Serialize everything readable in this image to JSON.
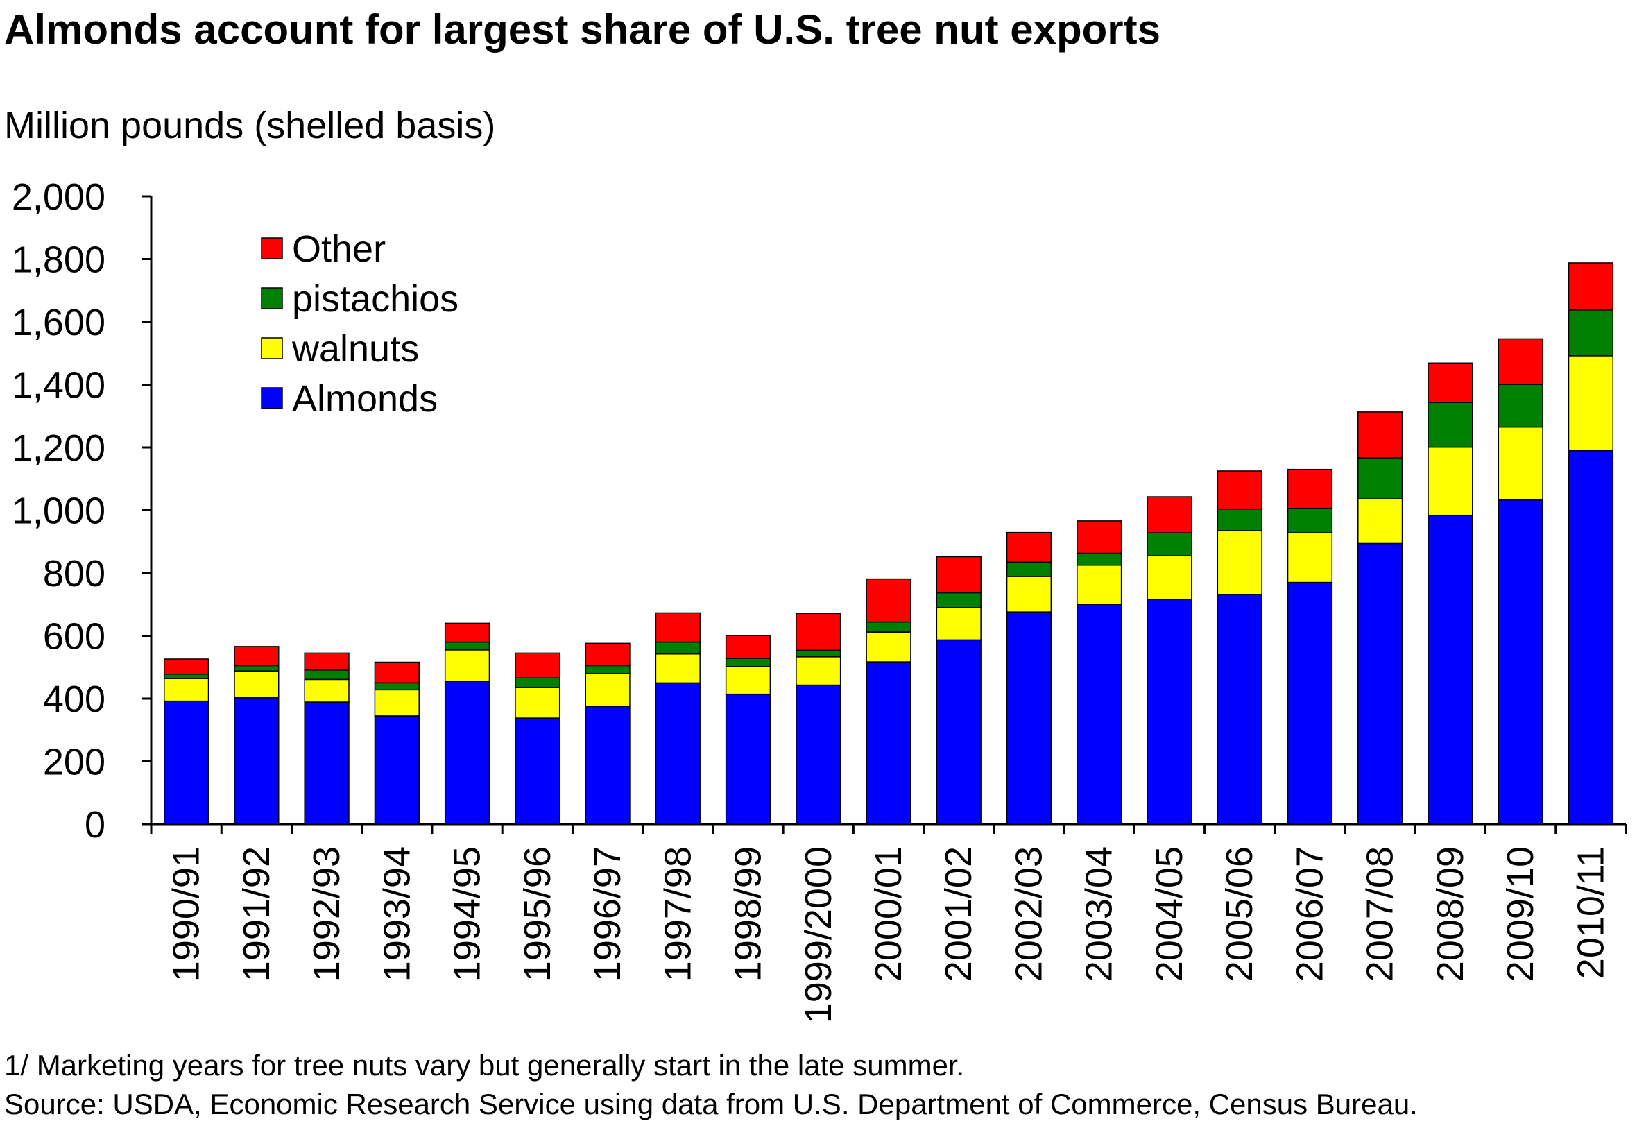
{
  "title": "Almonds account for largest share of U.S. tree nut exports",
  "y_unit": "Million pounds (shelled basis)",
  "footnote": "1/ Marketing years for tree nuts vary but generally start in the late summer.",
  "source": "Source: USDA, Economic Research Service using data from U.S. Department of Commerce, Census Bureau.",
  "colors": {
    "Almonds": "#0000ff",
    "walnuts": "#ffff00",
    "pistachios": "#008000",
    "Other": "#ff0000"
  },
  "chart_data": {
    "type": "bar",
    "stacked": true,
    "title": "Almonds account for largest share of U.S. tree nut exports",
    "ylabel": "Million pounds (shelled basis)",
    "xlabel": "",
    "ylim": [
      0,
      2000
    ],
    "yticks": [
      0,
      200,
      400,
      600,
      800,
      1000,
      1200,
      1400,
      1600,
      1800,
      2000
    ],
    "ytick_labels": [
      "0",
      "200",
      "400",
      "600",
      "800",
      "1,000",
      "1,200",
      "1,400",
      "1,600",
      "1,800",
      "2,000"
    ],
    "grid": false,
    "legend_position": "top-left",
    "legend_order": [
      "Other",
      "pistachios",
      "walnuts",
      "Almonds"
    ],
    "categories": [
      "1990/91",
      "1991/92",
      "1992/93",
      "1993/94",
      "1994/95",
      "1995/96",
      "1996/97",
      "1997/98",
      "1998/99",
      "1999/2000",
      "2000/01",
      "2001/02",
      "2002/03",
      "2003/04",
      "2004/05",
      "2005/06",
      "2006/07",
      "2007/08",
      "2008/09",
      "2009/10",
      "2010/11"
    ],
    "series": [
      {
        "name": "Almonds",
        "values": [
          392,
          403,
          389,
          345,
          455,
          338,
          375,
          450,
          414,
          443,
          517,
          587,
          676,
          700,
          716,
          732,
          770,
          894,
          983,
          1033,
          1190
        ]
      },
      {
        "name": "walnuts",
        "values": [
          72,
          85,
          72,
          83,
          100,
          97,
          105,
          92,
          88,
          90,
          95,
          103,
          113,
          125,
          139,
          203,
          158,
          142,
          218,
          232,
          302
        ]
      },
      {
        "name": "pistachios",
        "values": [
          14,
          17,
          30,
          22,
          25,
          31,
          25,
          38,
          26,
          21,
          32,
          47,
          46,
          38,
          73,
          69,
          78,
          131,
          142,
          136,
          146
        ]
      },
      {
        "name": "Other",
        "values": [
          48,
          61,
          54,
          66,
          60,
          79,
          71,
          93,
          73,
          117,
          137,
          115,
          94,
          103,
          115,
          121,
          124,
          146,
          126,
          145,
          150
        ]
      }
    ]
  }
}
